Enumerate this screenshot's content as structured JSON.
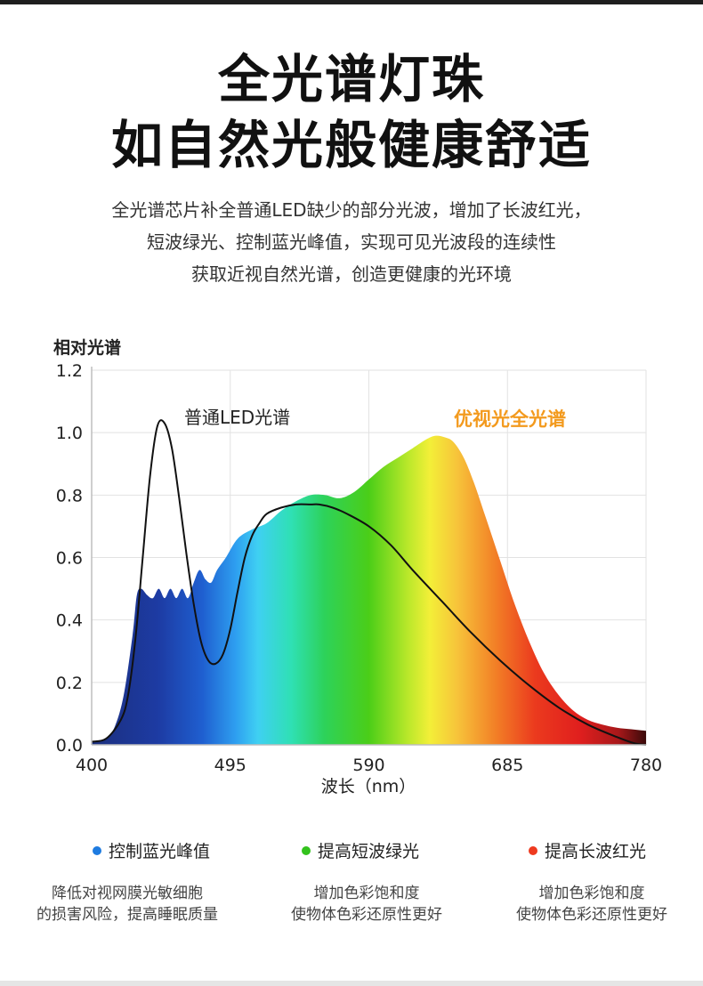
{
  "header": {
    "title_line1": "全光谱灯珠",
    "title_line2": "如自然光般健康舒适",
    "desc_line1": "全光谱芯片补全普通LED缺少的部分光波，增加了长波红光，",
    "desc_line2": "短波绿光、控制蓝光峰值，实现可见光波段的连续性",
    "desc_line3": "获取近视自然光谱，创造更健康的光环境"
  },
  "chart_data": {
    "type": "area",
    "ylabel": "相对光谱",
    "xlabel": "波长（nm）",
    "xlim": [
      400,
      780
    ],
    "ylim": [
      0,
      1.2
    ],
    "x_ticks": [
      "400",
      "495",
      "590",
      "685",
      "780"
    ],
    "y_ticks": [
      "0.0",
      "0.2",
      "0.4",
      "0.6",
      "0.8",
      "1.0",
      "1.2"
    ],
    "grid": true,
    "series": [
      {
        "name": "优视光全光谱",
        "style": "filled-rainbow",
        "label_color": "#f39a1e",
        "x": [
          400,
          404,
          410,
          416,
          422,
          428,
          431,
          434,
          438,
          442,
          446,
          450,
          454,
          458,
          462,
          466,
          470,
          474,
          478,
          482,
          486,
          492,
          500,
          510,
          520,
          530,
          540,
          550,
          560,
          570,
          580,
          590,
          600,
          610,
          620,
          630,
          636,
          642,
          648,
          655,
          662,
          670,
          680,
          690,
          700,
          710,
          720,
          730,
          740,
          750,
          760,
          770,
          780
        ],
        "values": [
          0.01,
          0.01,
          0.02,
          0.06,
          0.16,
          0.35,
          0.48,
          0.5,
          0.48,
          0.47,
          0.5,
          0.47,
          0.5,
          0.47,
          0.5,
          0.47,
          0.52,
          0.56,
          0.53,
          0.52,
          0.56,
          0.6,
          0.66,
          0.69,
          0.71,
          0.75,
          0.78,
          0.8,
          0.8,
          0.79,
          0.81,
          0.85,
          0.89,
          0.92,
          0.95,
          0.98,
          0.99,
          0.985,
          0.97,
          0.92,
          0.84,
          0.73,
          0.59,
          0.45,
          0.33,
          0.23,
          0.16,
          0.11,
          0.08,
          0.065,
          0.055,
          0.05,
          0.045
        ]
      },
      {
        "name": "普通LED光谱",
        "style": "black-line",
        "label_color": "#222222",
        "x": [
          400,
          410,
          420,
          425,
          430,
          435,
          440,
          445,
          450,
          455,
          460,
          465,
          470,
          475,
          480,
          485,
          490,
          495,
          500,
          505,
          510,
          515,
          520,
          530,
          540,
          550,
          556,
          565,
          575,
          590,
          605,
          620,
          640,
          660,
          680,
          700,
          720,
          740,
          760,
          772,
          780
        ],
        "values": [
          0.01,
          0.02,
          0.08,
          0.16,
          0.34,
          0.6,
          0.86,
          1.02,
          1.03,
          0.95,
          0.79,
          0.61,
          0.45,
          0.33,
          0.27,
          0.26,
          0.29,
          0.37,
          0.49,
          0.6,
          0.67,
          0.71,
          0.74,
          0.76,
          0.77,
          0.77,
          0.77,
          0.76,
          0.74,
          0.7,
          0.64,
          0.56,
          0.46,
          0.36,
          0.27,
          0.19,
          0.12,
          0.065,
          0.025,
          0.005,
          0.0
        ]
      }
    ]
  },
  "features": [
    {
      "title": "控制蓝光峰值",
      "color": "#1e7be0",
      "desc1": "降低对视网膜光敏细胞",
      "desc2": "的损害风险，提高睡眠质量"
    },
    {
      "title": "提高短波绿光",
      "color": "#33c21d",
      "desc1": "增加色彩饱和度",
      "desc2": "使物体色彩还原性更好"
    },
    {
      "title": "提高长波红光",
      "color": "#ee3a1f",
      "desc1": "增加色彩饱和度",
      "desc2": "使物体色彩还原性更好"
    }
  ]
}
